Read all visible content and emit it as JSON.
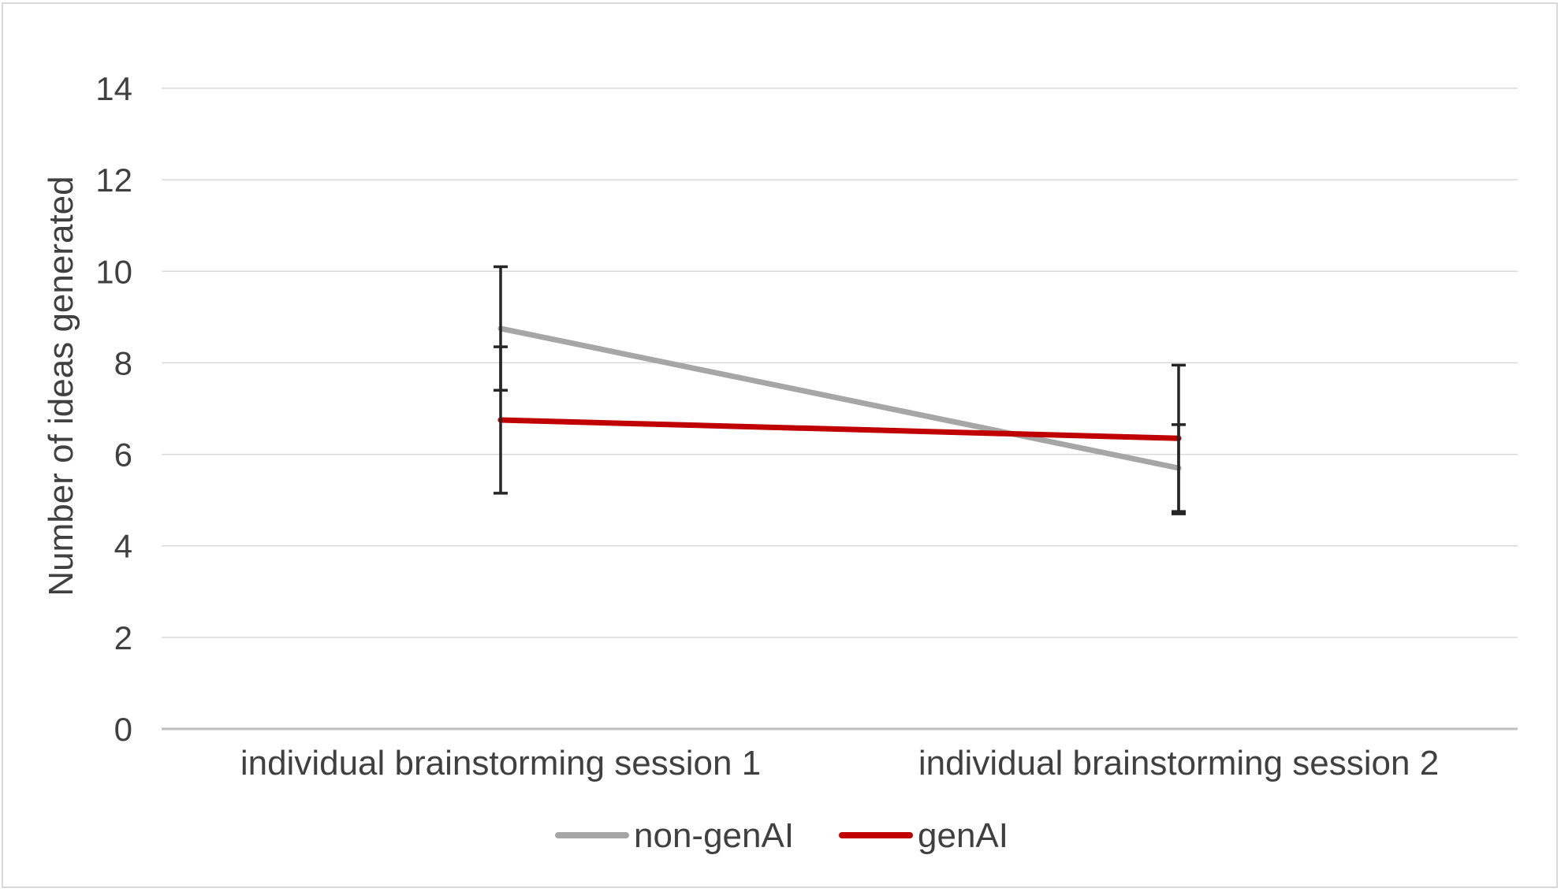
{
  "chart_data": {
    "type": "line",
    "title": "",
    "xlabel": "",
    "ylabel": "Number of ideas generated",
    "categories": [
      "individual brainstorming session 1",
      "individual brainstorming session 2"
    ],
    "ylim": [
      0,
      14
    ],
    "yticks": [
      0,
      2,
      4,
      6,
      8,
      10,
      12,
      14
    ],
    "grid": true,
    "legend_position": "bottom",
    "series": [
      {
        "name": "non-genAI",
        "color": "#a6a6a6",
        "values": [
          8.75,
          5.7
        ],
        "error_low": [
          7.4,
          4.75
        ],
        "error_high": [
          10.1,
          6.65
        ]
      },
      {
        "name": "genAI",
        "color": "#c00000",
        "values": [
          6.75,
          6.35
        ],
        "error_low": [
          5.15,
          4.7
        ],
        "error_high": [
          8.35,
          7.95
        ]
      }
    ]
  }
}
